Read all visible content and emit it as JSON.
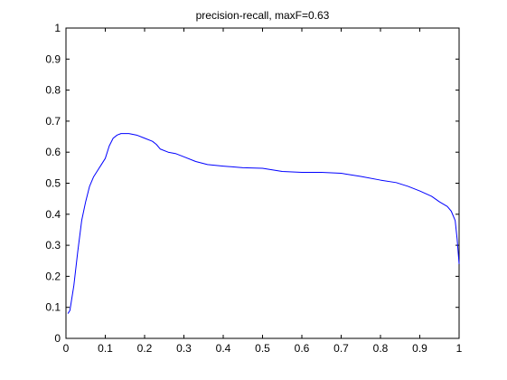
{
  "chart_data": {
    "type": "line",
    "title": "precision-recall, maxF=0.63",
    "xlabel": "",
    "ylabel": "",
    "xlim": [
      0,
      1
    ],
    "ylim": [
      0,
      1
    ],
    "xticks": [
      "0",
      "0.1",
      "0.2",
      "0.3",
      "0.4",
      "0.5",
      "0.6",
      "0.7",
      "0.8",
      "0.9",
      "1"
    ],
    "yticks": [
      "0",
      "0.1",
      "0.2",
      "0.3",
      "0.4",
      "0.5",
      "0.6",
      "0.7",
      "0.8",
      "0.9",
      "1"
    ],
    "grid": false,
    "legend": "none",
    "series": [
      {
        "color": "#0000ff",
        "x": [
          0.005,
          0.01,
          0.02,
          0.03,
          0.04,
          0.05,
          0.06,
          0.07,
          0.08,
          0.09,
          0.1,
          0.11,
          0.12,
          0.13,
          0.14,
          0.16,
          0.18,
          0.2,
          0.22,
          0.23,
          0.24,
          0.26,
          0.28,
          0.3,
          0.33,
          0.36,
          0.4,
          0.45,
          0.5,
          0.55,
          0.6,
          0.65,
          0.7,
          0.75,
          0.8,
          0.84,
          0.87,
          0.9,
          0.93,
          0.95,
          0.97,
          0.98,
          0.99,
          0.995,
          1.0
        ],
        "y": [
          0.08,
          0.09,
          0.17,
          0.28,
          0.38,
          0.44,
          0.49,
          0.52,
          0.54,
          0.56,
          0.58,
          0.62,
          0.645,
          0.655,
          0.66,
          0.66,
          0.655,
          0.645,
          0.635,
          0.625,
          0.61,
          0.6,
          0.595,
          0.585,
          0.57,
          0.56,
          0.555,
          0.55,
          0.548,
          0.538,
          0.535,
          0.535,
          0.532,
          0.522,
          0.51,
          0.502,
          0.49,
          0.475,
          0.458,
          0.44,
          0.425,
          0.41,
          0.38,
          0.32,
          0.24
        ]
      }
    ]
  }
}
